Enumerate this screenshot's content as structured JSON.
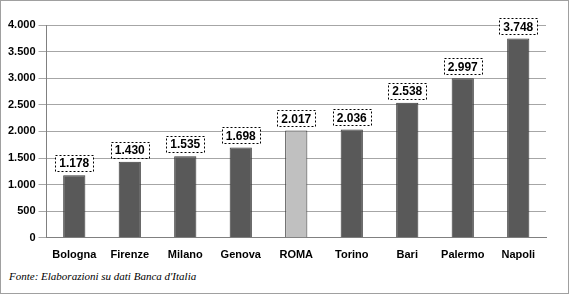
{
  "chart_data": {
    "type": "bar",
    "categories": [
      "Bologna",
      "Firenze",
      "Milano",
      "Genova",
      "ROMA",
      "Torino",
      "Bari",
      "Palermo",
      "Napoli"
    ],
    "values": [
      1178,
      1430,
      1535,
      1698,
      2017,
      2036,
      2538,
      2997,
      3748
    ],
    "value_labels": [
      "1.178",
      "1.430",
      "1.535",
      "1.698",
      "2.017",
      "2.036",
      "2.538",
      "2.997",
      "3.748"
    ],
    "colors": [
      "#595959",
      "#595959",
      "#595959",
      "#595959",
      "#c0c0c0",
      "#595959",
      "#595959",
      "#595959",
      "#595959"
    ],
    "ylim": [
      0,
      4000
    ],
    "yticks": [
      0,
      500,
      {
        "value": 1000,
        "label": "1.000"
      },
      {
        "value": 1500,
        "label": "1.500"
      },
      {
        "value": 2000,
        "label": "2.000"
      },
      {
        "value": 2500,
        "label": "2.500"
      },
      {
        "value": 3000,
        "label": "3.000"
      },
      {
        "value": 3500,
        "label": "3.500"
      },
      {
        "value": 4000,
        "label": "4.000"
      }
    ],
    "grid": true,
    "data_labels": true,
    "source": "Fonte: Elaborazioni su dati Banca d'Italia"
  }
}
